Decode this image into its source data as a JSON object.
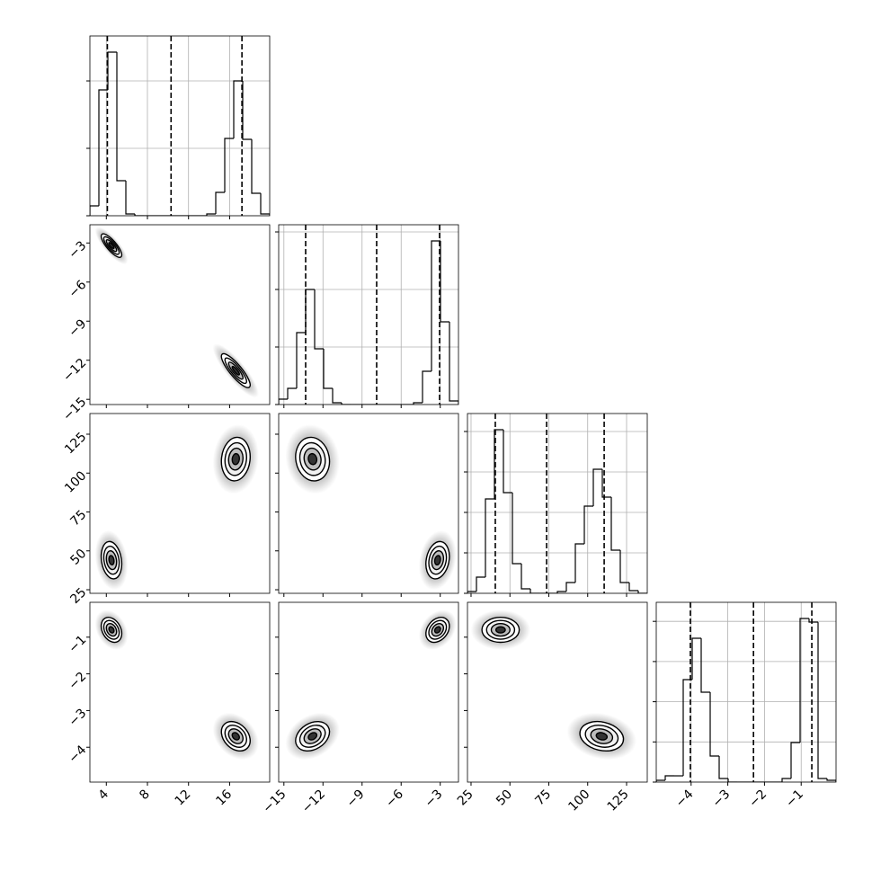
{
  "chart_data": {
    "type": "corner",
    "grid": true,
    "parameters": [
      {
        "lim": [
          2.4,
          19.9
        ],
        "ticks": [
          4,
          8,
          12,
          16
        ],
        "bins": [
          2.4,
          3.275,
          4.15,
          5.025,
          5.9,
          6.775,
          7.65,
          8.525,
          9.4,
          10.275,
          11.15,
          12.025,
          12.9,
          13.775,
          14.65,
          15.525,
          16.4,
          17.275,
          18.15,
          19.025,
          19.9
        ],
        "counts": [
          147,
          1867,
          2427,
          520,
          27,
          0,
          0,
          0,
          0,
          0,
          0,
          0,
          0,
          27,
          347,
          1147,
          2000,
          1133,
          333,
          27
        ],
        "count_lim": [
          0,
          2667
        ],
        "count_ticks": [
          0,
          1000,
          2000
        ],
        "quantiles": [
          4.1,
          10.3,
          17.2
        ]
      },
      {
        "lim": [
          -15.4,
          -1.6
        ],
        "ticks": [
          {
            "value": -15,
            "label": "−15"
          },
          {
            "value": -12,
            "label": "−12"
          },
          {
            "value": -9,
            "label": "−9"
          },
          {
            "value": -6,
            "label": "−6"
          },
          {
            "value": -3,
            "label": "−3"
          }
        ],
        "bins": [
          -15.4,
          -14.71,
          -14.02,
          -13.33,
          -12.64,
          -11.95,
          -11.26,
          -10.57,
          -9.88,
          -9.19,
          -8.5,
          -7.81,
          -7.12,
          -6.43,
          -5.74,
          -5.05,
          -4.36,
          -3.67,
          -2.98,
          -2.29,
          -1.6
        ],
        "counts": [
          94,
          281,
          1250,
          2000,
          969,
          281,
          31,
          0,
          0,
          0,
          0,
          0,
          0,
          0,
          0,
          31,
          578,
          2844,
          1438,
          63
        ],
        "count_lim": [
          0,
          3125
        ],
        "count_ticks": [
          0,
          1000,
          2000,
          3000
        ],
        "quantiles": [
          -13.33,
          -7.88,
          -3.05
        ]
      },
      {
        "lim": [
          22.7,
          138.3
        ],
        "ticks": [
          25,
          50,
          75,
          100,
          125
        ],
        "bins": [
          22.7,
          28.48,
          34.26,
          40.04,
          45.82,
          51.6,
          57.38,
          63.16,
          68.94,
          74.72,
          80.5,
          86.28,
          92.06,
          97.84,
          103.62,
          109.4,
          115.18,
          120.96,
          126.74,
          132.52,
          138.3
        ],
        "counts": [
          44,
          400,
          2333,
          4044,
          2489,
          733,
          111,
          0,
          0,
          0,
          44,
          267,
          1222,
          2156,
          3067,
          2378,
          1067,
          267,
          67,
          0
        ],
        "count_lim": [
          0,
          4444
        ],
        "count_ticks": [
          0,
          1000,
          2000,
          3000,
          4000
        ],
        "quantiles": [
          40.6,
          73.6,
          110.6
        ]
      },
      {
        "lim": [
          -4.95,
          -0.05
        ],
        "ticks": [
          {
            "value": -4,
            "label": "−4"
          },
          {
            "value": -3,
            "label": "−3"
          },
          {
            "value": -2,
            "label": "−2"
          },
          {
            "value": -1,
            "label": "−1"
          }
        ],
        "bins": [
          -4.95,
          -4.705,
          -4.46,
          -4.215,
          -3.97,
          -3.725,
          -3.48,
          -3.235,
          -2.99,
          -2.745,
          -2.5,
          -2.255,
          -2.01,
          -1.765,
          -1.52,
          -1.275,
          -1.03,
          -0.785,
          -0.54,
          -0.295,
          -0.05
        ],
        "counts": [
          44,
          156,
          156,
          2550,
          3580,
          2237,
          648,
          89,
          0,
          0,
          0,
          0,
          0,
          0,
          89,
          984,
          4072,
          3980,
          89,
          44
        ],
        "count_lim": [
          0,
          4474
        ],
        "count_ticks": [
          0,
          1000,
          2000,
          3000,
          4000
        ],
        "quantiles": [
          -4.02,
          -2.3,
          -0.71
        ]
      }
    ],
    "modes": [
      {
        "mean": [
          4.5,
          -3.2,
          44,
          -0.8
        ],
        "sd": [
          0.5,
          0.45,
          6,
          0.17
        ],
        "corr": [
          -0.8,
          -0.2,
          0.2,
          -0.3,
          0.3,
          0
        ]
      },
      {
        "mean": [
          16.6,
          -12.8,
          109,
          -3.7
        ],
        "sd": [
          0.7,
          0.65,
          7,
          0.2
        ],
        "corr": [
          -0.85,
          0.1,
          -0.1,
          -0.3,
          0.3,
          -0.2
        ]
      }
    ]
  }
}
